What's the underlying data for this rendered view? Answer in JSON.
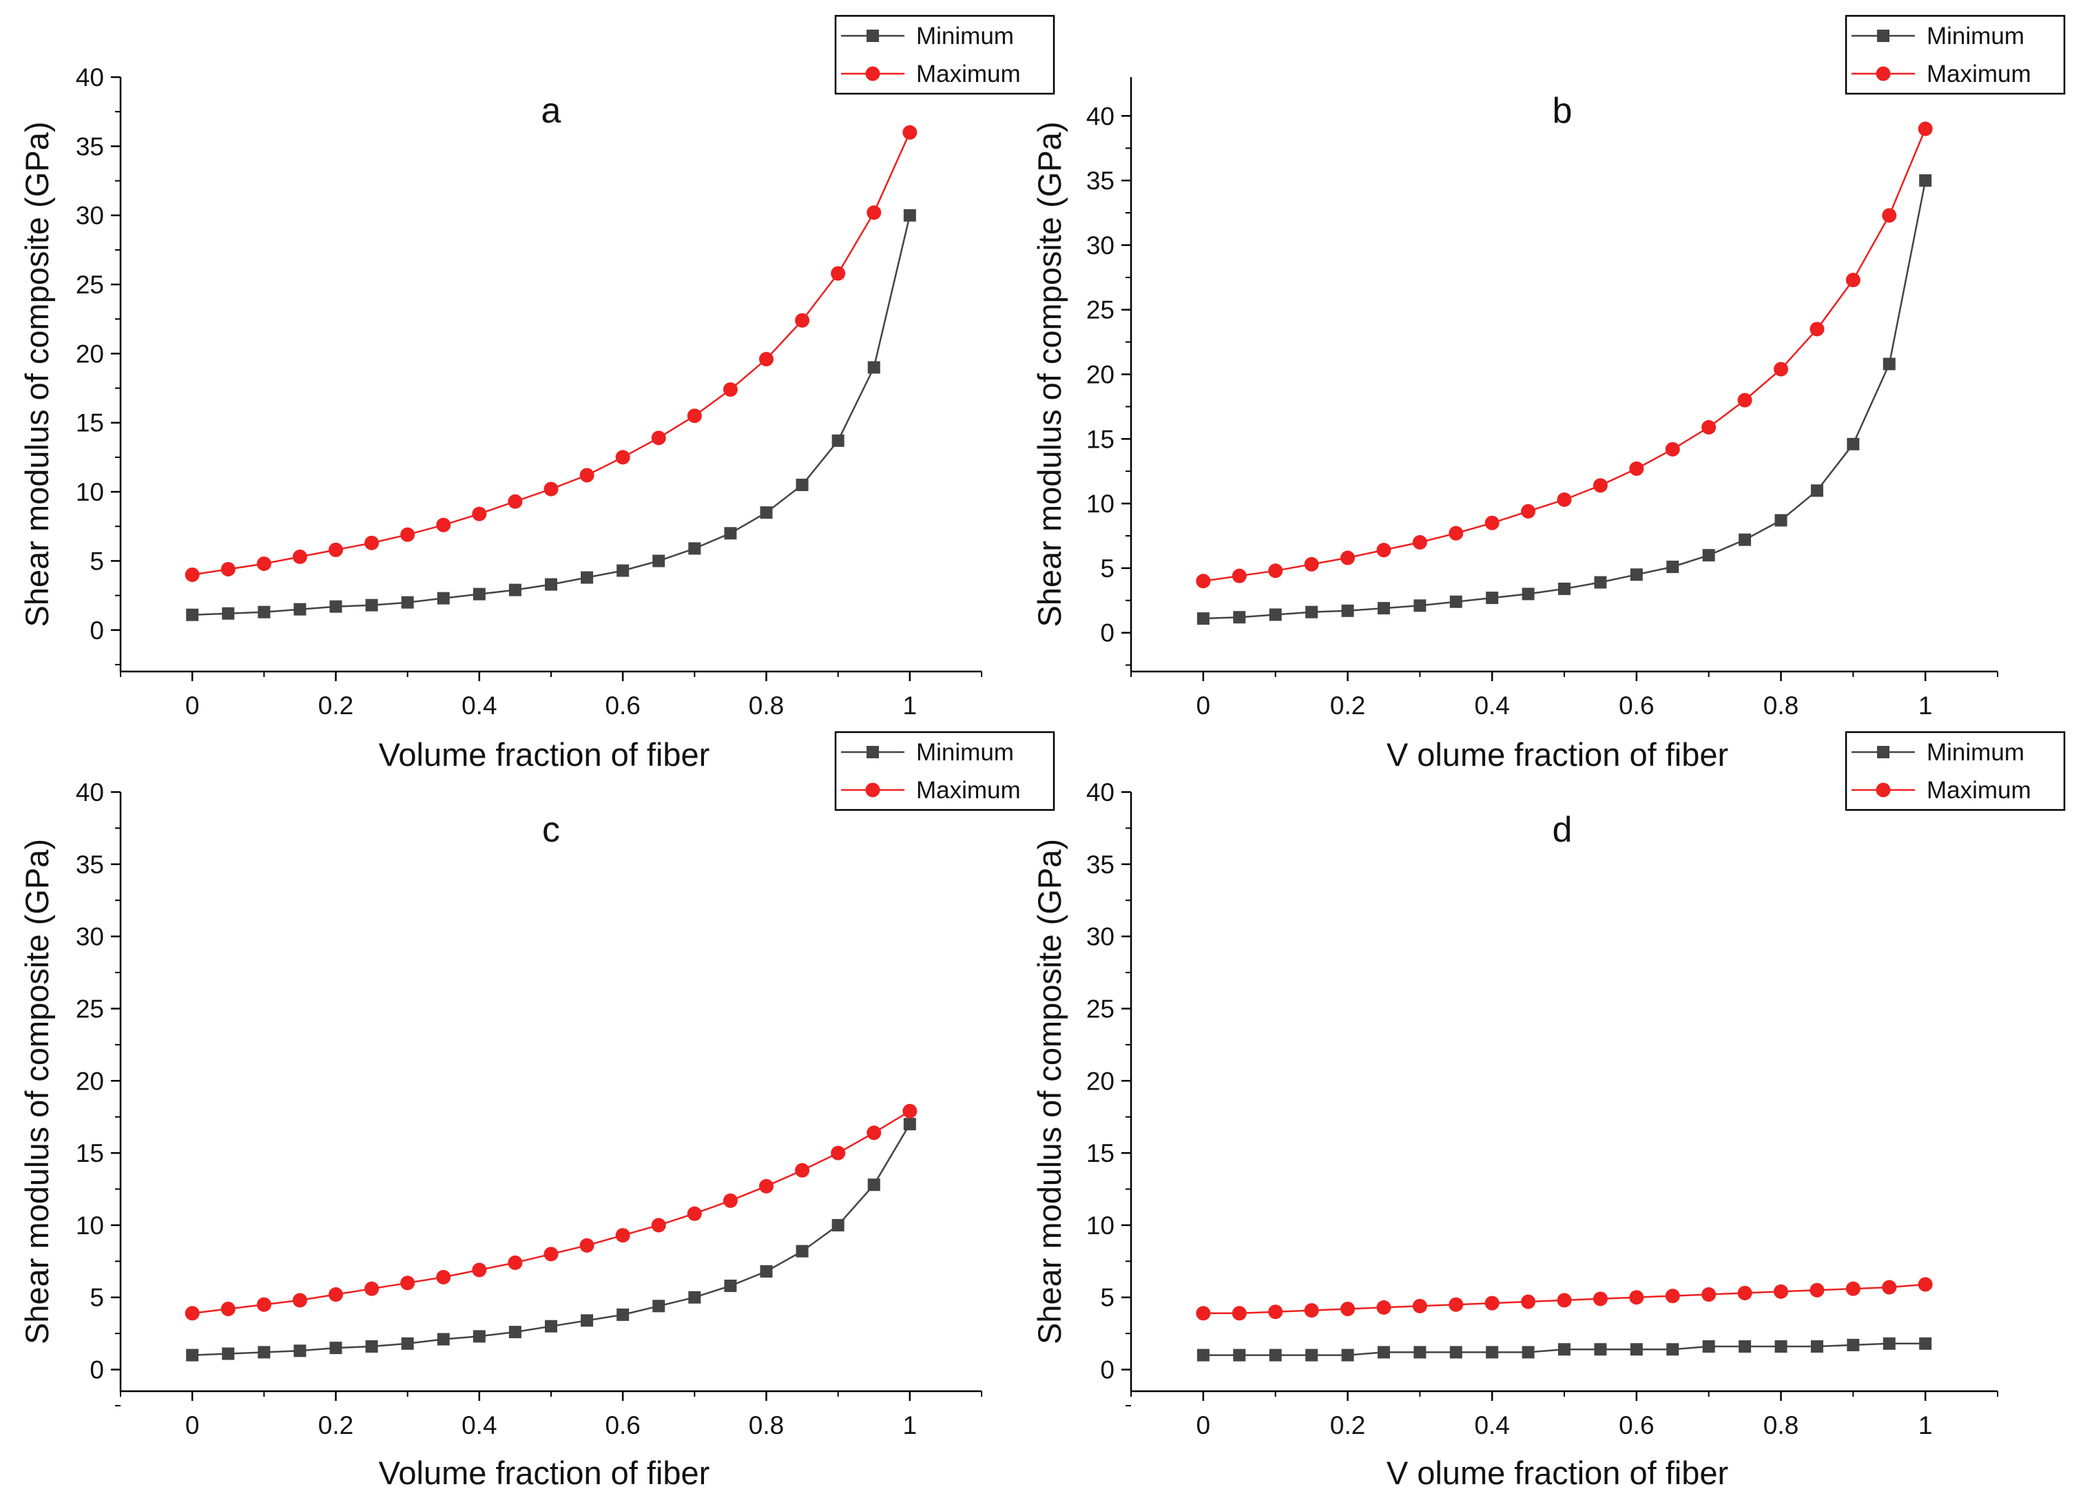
{
  "colors": {
    "minimum": "#444444",
    "maximum": "#ee2020",
    "axis": "#000000",
    "background": "#ffffff"
  },
  "chart_data": [
    {
      "type": "line",
      "panel": "a",
      "title": "a",
      "xlabel": "Volume fraction of fiber",
      "ylabel": "Shear modulus of composite (GPa)",
      "xlim": [
        -0.1,
        1.1
      ],
      "ylim": [
        -3,
        40
      ],
      "xticks": [
        0,
        0.2,
        0.4,
        0.6,
        0.8,
        1
      ],
      "xtick_labels": [
        "0",
        "0.2",
        "0.4",
        "0.6",
        "0.8",
        "1"
      ],
      "yticks": [
        0,
        5,
        10,
        15,
        20,
        25,
        30,
        35,
        40
      ],
      "ytick_labels": [
        "0",
        "5",
        "10",
        "15",
        "20",
        "25",
        "30",
        "35",
        "40"
      ],
      "legend_position": "top-right, outside plot",
      "x": [
        0,
        0.05,
        0.1,
        0.15,
        0.2,
        0.25,
        0.3,
        0.35,
        0.4,
        0.45,
        0.5,
        0.55,
        0.6,
        0.65,
        0.7,
        0.75,
        0.8,
        0.85,
        0.9,
        0.95,
        1
      ],
      "series": [
        {
          "name": "Minimum",
          "marker": "square",
          "values": [
            1.1,
            1.2,
            1.3,
            1.5,
            1.7,
            1.8,
            2.0,
            2.3,
            2.6,
            2.9,
            3.3,
            3.8,
            4.3,
            5.0,
            5.9,
            7.0,
            8.5,
            10.5,
            13.7,
            19.0,
            30.0
          ]
        },
        {
          "name": "Maximum",
          "marker": "circle",
          "values": [
            4.0,
            4.4,
            4.8,
            5.3,
            5.8,
            6.3,
            6.9,
            7.6,
            8.4,
            9.3,
            10.2,
            11.2,
            12.5,
            13.9,
            15.5,
            17.4,
            19.6,
            22.4,
            25.8,
            30.2,
            36.0
          ]
        }
      ]
    },
    {
      "type": "line",
      "panel": "b",
      "title": "b",
      "xlabel": "V olume fraction of fiber",
      "ylabel": "Shear modulus of composite (GPa)",
      "xlim": [
        -0.1,
        1.1
      ],
      "ylim": [
        -3,
        43
      ],
      "xticks": [
        0,
        0.2,
        0.4,
        0.6,
        0.8,
        1
      ],
      "xtick_labels": [
        "0",
        "0.2",
        "0.4",
        "0.6",
        "0.8",
        "1"
      ],
      "yticks": [
        0,
        5,
        10,
        15,
        20,
        25,
        30,
        35,
        40
      ],
      "ytick_labels": [
        "0",
        "5",
        "10",
        "15",
        "20",
        "25",
        "30",
        "35",
        "40"
      ],
      "legend_position": "top-right, outside plot",
      "x": [
        0,
        0.05,
        0.1,
        0.15,
        0.2,
        0.25,
        0.3,
        0.35,
        0.4,
        0.45,
        0.5,
        0.55,
        0.6,
        0.65,
        0.7,
        0.75,
        0.8,
        0.85,
        0.9,
        0.95,
        1
      ],
      "series": [
        {
          "name": "Minimum",
          "marker": "square",
          "values": [
            1.1,
            1.2,
            1.4,
            1.6,
            1.7,
            1.9,
            2.1,
            2.4,
            2.7,
            3.0,
            3.4,
            3.9,
            4.5,
            5.1,
            6.0,
            7.2,
            8.7,
            11.0,
            14.6,
            20.8,
            35.0
          ]
        },
        {
          "name": "Maximum",
          "marker": "circle",
          "values": [
            4.0,
            4.4,
            4.8,
            5.3,
            5.8,
            6.4,
            7.0,
            7.7,
            8.5,
            9.4,
            10.3,
            11.4,
            12.7,
            14.2,
            15.9,
            18.0,
            20.4,
            23.5,
            27.3,
            32.3,
            39.0
          ]
        }
      ]
    },
    {
      "type": "line",
      "panel": "c",
      "title": "c",
      "xlabel": "Volume fraction of fiber",
      "ylabel": "Shear modulus of composite (GPa)",
      "xlim": [
        -0.1,
        1.1
      ],
      "ylim": [
        -1.5,
        40
      ],
      "xticks": [
        0,
        0.2,
        0.4,
        0.6,
        0.8,
        1
      ],
      "xtick_labels": [
        "0",
        "0.2",
        "0.4",
        "0.6",
        "0.8",
        "1"
      ],
      "yticks": [
        0,
        5,
        10,
        15,
        20,
        25,
        30,
        35,
        40
      ],
      "ytick_labels": [
        "0",
        "5",
        "10",
        "15",
        "20",
        "25",
        "30",
        "35",
        "40"
      ],
      "legend_position": "top-right, outside plot",
      "x": [
        0,
        0.05,
        0.1,
        0.15,
        0.2,
        0.25,
        0.3,
        0.35,
        0.4,
        0.45,
        0.5,
        0.55,
        0.6,
        0.65,
        0.7,
        0.75,
        0.8,
        0.85,
        0.9,
        0.95,
        1
      ],
      "series": [
        {
          "name": "Minimum",
          "marker": "square",
          "values": [
            1.0,
            1.1,
            1.2,
            1.3,
            1.5,
            1.6,
            1.8,
            2.1,
            2.3,
            2.6,
            3.0,
            3.4,
            3.8,
            4.4,
            5.0,
            5.8,
            6.8,
            8.2,
            10.0,
            12.8,
            17.0
          ]
        },
        {
          "name": "Maximum",
          "marker": "circle",
          "values": [
            3.9,
            4.2,
            4.5,
            4.8,
            5.2,
            5.6,
            6.0,
            6.4,
            6.9,
            7.4,
            8.0,
            8.6,
            9.3,
            10.0,
            10.8,
            11.7,
            12.7,
            13.8,
            15.0,
            16.4,
            17.9
          ]
        }
      ]
    },
    {
      "type": "line",
      "panel": "d",
      "title": "d",
      "xlabel": "V olume fraction of fiber",
      "ylabel": "Shear modulus of composite (GPa)",
      "xlim": [
        -0.1,
        1.1
      ],
      "ylim": [
        -1.5,
        40
      ],
      "xticks": [
        0,
        0.2,
        0.4,
        0.6,
        0.8,
        1
      ],
      "xtick_labels": [
        "0",
        "0.2",
        "0.4",
        "0.6",
        "0.8",
        "1"
      ],
      "yticks": [
        0,
        5,
        10,
        15,
        20,
        25,
        30,
        35,
        40
      ],
      "ytick_labels": [
        "0",
        "5",
        "10",
        "15",
        "20",
        "25",
        "30",
        "35",
        "40"
      ],
      "legend_position": "top-right, outside plot",
      "x": [
        0,
        0.05,
        0.1,
        0.15,
        0.2,
        0.25,
        0.3,
        0.35,
        0.4,
        0.45,
        0.5,
        0.55,
        0.6,
        0.65,
        0.7,
        0.75,
        0.8,
        0.85,
        0.9,
        0.95,
        1
      ],
      "series": [
        {
          "name": "Minimum",
          "marker": "square",
          "values": [
            1.0,
            1.0,
            1.0,
            1.0,
            1.0,
            1.2,
            1.2,
            1.2,
            1.2,
            1.2,
            1.4,
            1.4,
            1.4,
            1.4,
            1.6,
            1.6,
            1.6,
            1.6,
            1.7,
            1.8,
            1.8
          ]
        },
        {
          "name": "Maximum",
          "marker": "circle",
          "values": [
            3.9,
            3.9,
            4.0,
            4.1,
            4.2,
            4.3,
            4.4,
            4.5,
            4.6,
            4.7,
            4.8,
            4.9,
            5.0,
            5.1,
            5.2,
            5.3,
            5.4,
            5.5,
            5.6,
            5.7,
            5.9
          ]
        }
      ]
    }
  ]
}
